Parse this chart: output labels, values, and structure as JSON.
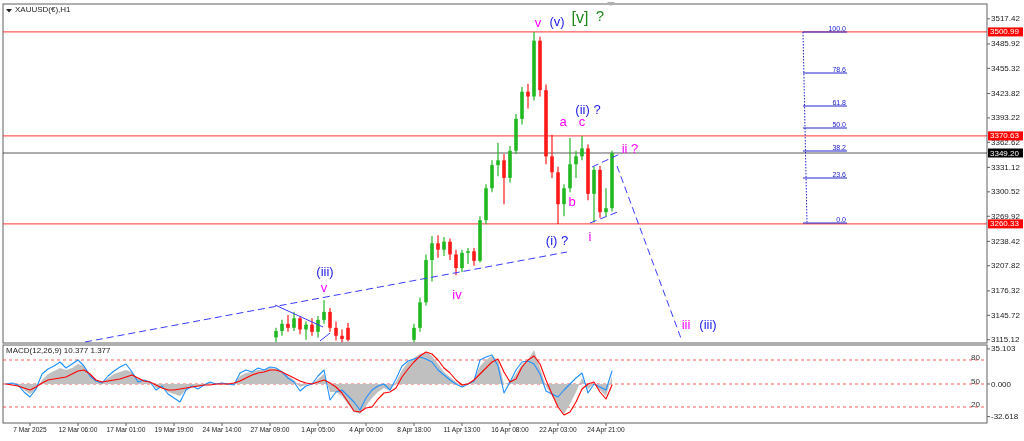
{
  "chart_data": [
    {
      "type": "candlestick",
      "title": "XAUUSD(€),H1",
      "categories": [
        null,
        null,
        null,
        null,
        null,
        null,
        null,
        null,
        null,
        null,
        null,
        null,
        null,
        null,
        null,
        null,
        null,
        null,
        null,
        null,
        null,
        null,
        null,
        null,
        null,
        null,
        null,
        null,
        null,
        null,
        null,
        null,
        null,
        null,
        null,
        null,
        null,
        null,
        null,
        null,
        null,
        null,
        null,
        null,
        null,
        null,
        null,
        null,
        null,
        null,
        null,
        null,
        null,
        null,
        null,
        null,
        null,
        null,
        null,
        null,
        null,
        null,
        null,
        null,
        null,
        null,
        null,
        null,
        null,
        null,
        null,
        null,
        null,
        null,
        null,
        null,
        null,
        null,
        null,
        null,
        null,
        null,
        null,
        null,
        null,
        null,
        null,
        null,
        null,
        null,
        null,
        null,
        null,
        null,
        null,
        null,
        null,
        null,
        null,
        null,
        null,
        null,
        null,
        null,
        null,
        null,
        null,
        null,
        null,
        null,
        null,
        null,
        null,
        null,
        null,
        null,
        null,
        null,
        null,
        null,
        null,
        null,
        null,
        null,
        null,
        null,
        null,
        null,
        null,
        null,
        null,
        null,
        null,
        null,
        null,
        null,
        null,
        null,
        null,
        null,
        null,
        null,
        null,
        null,
        null,
        null,
        null,
        null,
        null,
        null,
        null,
        null,
        null,
        null,
        null,
        null,
        null,
        null,
        null,
        null,
        null,
        null,
        null,
        null
      ],
      "ohlc": [
        null,
        null,
        null,
        null,
        null,
        null,
        null,
        null,
        null,
        null,
        null,
        null,
        null,
        null,
        null,
        null,
        null,
        null,
        null,
        null,
        null,
        null,
        null,
        null,
        null,
        null,
        null,
        null,
        null,
        null,
        null,
        null,
        null,
        null,
        null,
        null,
        null,
        null,
        null,
        null,
        null,
        null,
        null,
        null,
        null,
        [
          3118,
          3130,
          3112,
          3126
        ],
        [
          3126,
          3140,
          3120,
          3135
        ],
        [
          3135,
          3146,
          3125,
          3130
        ],
        [
          3130,
          3150,
          3126,
          3142
        ],
        [
          3142,
          3145,
          3122,
          3128
        ],
        [
          3128,
          3138,
          3115,
          3134
        ],
        [
          3134,
          3142,
          3120,
          3125
        ],
        [
          3125,
          3145,
          3118,
          3140
        ],
        [
          3140,
          3165,
          3135,
          3150
        ],
        [
          3150,
          3155,
          3125,
          3130
        ],
        [
          3130,
          3138,
          3114,
          3120
        ],
        [
          3120,
          3128,
          3112,
          3116
        ],
        [
          3130,
          3136,
          3113,
          3115
        ],
        null,
        null,
        null,
        null,
        null,
        null,
        null,
        null,
        null,
        null,
        [
          3115,
          3135,
          3112,
          3130
        ],
        [
          3130,
          3168,
          3125,
          3162
        ],
        [
          3162,
          3222,
          3158,
          3215
        ],
        [
          3215,
          3245,
          3188,
          3236
        ],
        [
          3236,
          3246,
          3218,
          3228
        ],
        [
          3228,
          3244,
          3220,
          3238
        ],
        [
          3238,
          3242,
          3215,
          3222
        ],
        [
          3222,
          3228,
          3196,
          3205
        ],
        [
          3205,
          3228,
          3200,
          3224
        ],
        [
          3224,
          3230,
          3210,
          3226
        ],
        [
          3226,
          3230,
          3208,
          3214
        ],
        [
          3214,
          3270,
          3212,
          3265
        ],
        [
          3265,
          3310,
          3260,
          3305
        ],
        [
          3305,
          3340,
          3300,
          3334
        ],
        [
          3334,
          3362,
          3320,
          3340
        ],
        [
          3340,
          3348,
          3285,
          3318
        ],
        [
          3318,
          3358,
          3312,
          3352
        ],
        [
          3352,
          3398,
          3348,
          3392
        ],
        [
          3392,
          3432,
          3385,
          3426
        ],
        [
          3426,
          3436,
          3405,
          3420
        ],
        [
          3420,
          3500.99,
          3415,
          3490
        ],
        [
          3490,
          3495,
          3420,
          3428
        ],
        [
          3428,
          3435,
          3335,
          3345
        ],
        [
          3345,
          3372,
          3318,
          3325
        ],
        [
          3325,
          3332,
          3260.33,
          3285
        ],
        [
          3285,
          3310,
          3270,
          3305
        ],
        [
          3305,
          3368,
          3300,
          3335
        ],
        [
          3335,
          3352,
          3318,
          3345
        ],
        [
          3345,
          3370.63,
          3340,
          3355
        ],
        [
          3355,
          3360,
          3290,
          3298
        ],
        [
          3298,
          3332,
          3262,
          3328
        ],
        [
          3328,
          3333,
          3268,
          3275
        ],
        [
          3275,
          3305,
          3270,
          3280
        ],
        [
          3280,
          3352,
          3276,
          3349.2
        ],
        null,
        null,
        null,
        null,
        null,
        null,
        null,
        null,
        null,
        null,
        null,
        null,
        null,
        null,
        null,
        null,
        null,
        null,
        null,
        null,
        null,
        null,
        null,
        null,
        null,
        null,
        null,
        null,
        null,
        null,
        null,
        null,
        null,
        null,
        null,
        null,
        null,
        null,
        null,
        null,
        null,
        null,
        null,
        null,
        null,
        null,
        null,
        null,
        null,
        null,
        null,
        null,
        null,
        null,
        null,
        null,
        null,
        null,
        null,
        null,
        null,
        null
      ],
      "ylim": [
        3111,
        3536
      ],
      "yticks": [
        3517.42,
        3485.92,
        3455.32,
        3423.82,
        3393.22,
        3362.62,
        3331.12,
        3300.52,
        3269.92,
        3238.42,
        3207.82,
        3176.32,
        3145.72,
        3115.12
      ],
      "tick_labels": "y",
      "ref_lines": [
        {
          "axis": "y",
          "value": 3500.99,
          "label": "3500.99",
          "color": "#ff0000"
        },
        {
          "axis": "y",
          "value": 3370.63,
          "label": "3370.63",
          "color": "#ff0000"
        },
        {
          "axis": "y",
          "value": 3349.2,
          "label": "3349.20",
          "color": "#000000"
        },
        {
          "axis": "y",
          "value": 3260.33,
          "label": "3260.33",
          "color": "#ff0000"
        }
      ],
      "annotations": [
        "(iii)",
        "v",
        "iv",
        "v",
        "(v)",
        "[v]",
        "?",
        "(ii) ?",
        "a",
        "c",
        "b",
        "(i) ?",
        "i",
        "ii ?",
        "iii",
        "(iii)",
        "100.0",
        "78.6",
        "61.8",
        "50.0",
        "38.2",
        "23.6",
        "0.0"
      ]
    },
    {
      "type": "line",
      "title": "MACD(12,26,9) 10.377 1.377",
      "categories": [
        null,
        null,
        null,
        null,
        "7 Mar 2025",
        null,
        null,
        null,
        null,
        null,
        null,
        null,
        "12 Mar 06:00",
        null,
        null,
        null,
        null,
        null,
        null,
        null,
        "17 Mar 01:00",
        null,
        null,
        null,
        null,
        null,
        null,
        null,
        "19 Mar 19:00",
        null,
        null,
        null,
        null,
        null,
        null,
        null,
        "24 Mar 14:00",
        null,
        null,
        null,
        null,
        null,
        null,
        null,
        "27 Mar 09:00",
        null,
        null,
        null,
        null,
        null,
        null,
        null,
        "1 Apr 05:00",
        null,
        null,
        null,
        null,
        null,
        null,
        null,
        "4 Apr 00:00",
        null,
        null,
        null,
        null,
        null,
        null,
        null,
        "8 Apr 18:00",
        null,
        null,
        null,
        null,
        null,
        null,
        null,
        "11 Apr 13:00",
        null,
        null,
        null,
        null,
        null,
        null,
        null,
        "16 Apr 08:00",
        null,
        null,
        null,
        null,
        null,
        null,
        null,
        "22 Apr 03:00",
        null,
        null,
        null,
        null,
        null,
        null,
        null,
        "24 Apr 21:00",
        null,
        null,
        null,
        null,
        null,
        null,
        null,
        null,
        null,
        null,
        null,
        null,
        null,
        null,
        null,
        null,
        null,
        null,
        null,
        null,
        null,
        null,
        null,
        null,
        null,
        null,
        null,
        null,
        null,
        null,
        null,
        null,
        null,
        null,
        null,
        null,
        null,
        null,
        null,
        null,
        null,
        null,
        null,
        null,
        null,
        null,
        null,
        null,
        null,
        null,
        null,
        null,
        null,
        null,
        null,
        null,
        null,
        null,
        null,
        null,
        null,
        null,
        null
      ],
      "series": [
        {
          "type": "area",
          "color": "#c0c0c0",
          "values": [
            0,
            0,
            -2,
            -6,
            -10,
            -6,
            4,
            10,
            13,
            16,
            14,
            16,
            20,
            18,
            10,
            4,
            2,
            6,
            10,
            12,
            14,
            12,
            5,
            4,
            2,
            -4,
            -4,
            -8,
            -10,
            -12,
            -6,
            -3,
            -3,
            -1,
            1,
            0,
            1,
            0,
            0,
            8,
            11,
            12,
            14,
            14,
            16,
            15,
            12,
            8,
            4,
            -3,
            -1,
            0,
            5,
            10,
            -8,
            -8,
            -12,
            -20,
            -28,
            -30,
            -22,
            -14,
            -8,
            -4,
            -7,
            2,
            14,
            22,
            26,
            30,
            32,
            28,
            20,
            12,
            7,
            2,
            -2,
            0,
            4,
            18,
            24,
            28,
            24,
            0,
            2,
            10,
            20,
            24,
            34,
            16,
            -2,
            -12,
            -22,
            -30,
            -20,
            -8,
            6,
            -5,
            0,
            -6,
            -12,
            8,
            null,
            null,
            null,
            null,
            null,
            null,
            null,
            null,
            null,
            null,
            null,
            null,
            null,
            null,
            null,
            null,
            null,
            null,
            null,
            null,
            null,
            null,
            null,
            null,
            null,
            null,
            null,
            null,
            null,
            null,
            null,
            null,
            null,
            null,
            null,
            null,
            null,
            null,
            null,
            null,
            null,
            null,
            null,
            null,
            null,
            null,
            null,
            null,
            null,
            null,
            null,
            null,
            null,
            null,
            null,
            null,
            null,
            null,
            null,
            null,
            null,
            null
          ]
        },
        {
          "color": "#1e90ff",
          "values": [
            0,
            1,
            -1,
            -8,
            -13,
            -5,
            10,
            15,
            18,
            22,
            16,
            20,
            24,
            18,
            8,
            3,
            1,
            8,
            13,
            17,
            20,
            12,
            2,
            4,
            2,
            -6,
            -2,
            -10,
            -14,
            -18,
            -6,
            -2,
            -5,
            -1,
            2,
            0,
            1,
            0,
            -1,
            11,
            14,
            12,
            16,
            14,
            17,
            16,
            12,
            6,
            2,
            -7,
            -2,
            0,
            8,
            14,
            -16,
            -8,
            -6,
            -12,
            -18,
            -26,
            -14,
            -6,
            -2,
            0,
            -6,
            5,
            18,
            23,
            25,
            27,
            25,
            22,
            14,
            9,
            4,
            0,
            -3,
            0,
            3,
            24,
            27,
            29,
            18,
            -9,
            2,
            14,
            22,
            23,
            20,
            10,
            -7,
            -10,
            -13,
            -6,
            0,
            6,
            11,
            -9,
            0,
            -3,
            -6,
            13,
            null,
            null,
            null,
            null,
            null,
            null,
            null,
            null,
            null,
            null,
            null,
            null,
            null,
            null,
            null,
            null,
            null,
            null,
            null,
            null,
            null,
            null,
            null,
            null,
            null,
            null,
            null,
            null,
            null,
            null,
            null,
            null,
            null,
            null,
            null,
            null,
            null,
            null,
            null,
            null,
            null,
            null,
            null,
            null,
            null,
            null,
            null,
            null,
            null,
            null,
            null,
            null,
            null,
            null,
            null,
            null,
            null,
            null,
            null,
            null,
            null,
            null
          ]
        },
        {
          "color": "#ff0000",
          "values": [
            0,
            -1,
            -2,
            -4,
            -6,
            -3,
            1,
            4,
            5,
            6,
            7,
            10,
            13,
            14,
            10,
            4,
            2,
            3,
            4,
            5,
            7,
            9,
            6,
            3,
            2,
            -1,
            -4,
            -6,
            -6,
            -5,
            -4,
            -3,
            -2,
            -1,
            -1,
            0,
            0,
            0,
            1,
            3,
            6,
            9,
            11,
            12,
            14,
            14,
            12,
            9,
            6,
            3,
            1,
            0,
            2,
            4,
            1,
            -3,
            -9,
            -18,
            -27,
            -28,
            -24,
            -23,
            -15,
            -9,
            -8,
            -4,
            7,
            15,
            22,
            28,
            32,
            30,
            24,
            16,
            11,
            4,
            -1,
            0,
            4,
            10,
            16,
            22,
            25,
            12,
            2,
            5,
            17,
            24,
            28,
            20,
            4,
            -10,
            -23,
            -31,
            -28,
            -18,
            -5,
            0,
            2,
            -8,
            -15,
            -1,
            null,
            null,
            null,
            null,
            null,
            null,
            null,
            null,
            null,
            null,
            null,
            null,
            null,
            null,
            null,
            null,
            null,
            null,
            null,
            null,
            null,
            null,
            null,
            null,
            null,
            null,
            null,
            null,
            null,
            null,
            null,
            null,
            null,
            null,
            null,
            null,
            null,
            null,
            null,
            null,
            null,
            null,
            null,
            null,
            null,
            null,
            null,
            null,
            null,
            null,
            null,
            null,
            null,
            null,
            null,
            null,
            null,
            null,
            null,
            null,
            null,
            null
          ]
        }
      ],
      "ylim": [
        -39,
        39
      ],
      "yticks": [
        35.103,
        {
          "value": 0,
          "label": "0.000"
        },
        -32.618
      ],
      "ref_lines": [
        {
          "axis": "y",
          "value": 24,
          "color": "#ff0000",
          "line_style": "dashed"
        },
        {
          "axis": "y",
          "value": 0,
          "color": "#ff0000",
          "line_style": "dashed"
        },
        {
          "axis": "y",
          "value": -23,
          "color": "#ff0000",
          "line_style": "dashed"
        }
      ],
      "annotations": [
        "80",
        "50",
        "20"
      ]
    }
  ]
}
